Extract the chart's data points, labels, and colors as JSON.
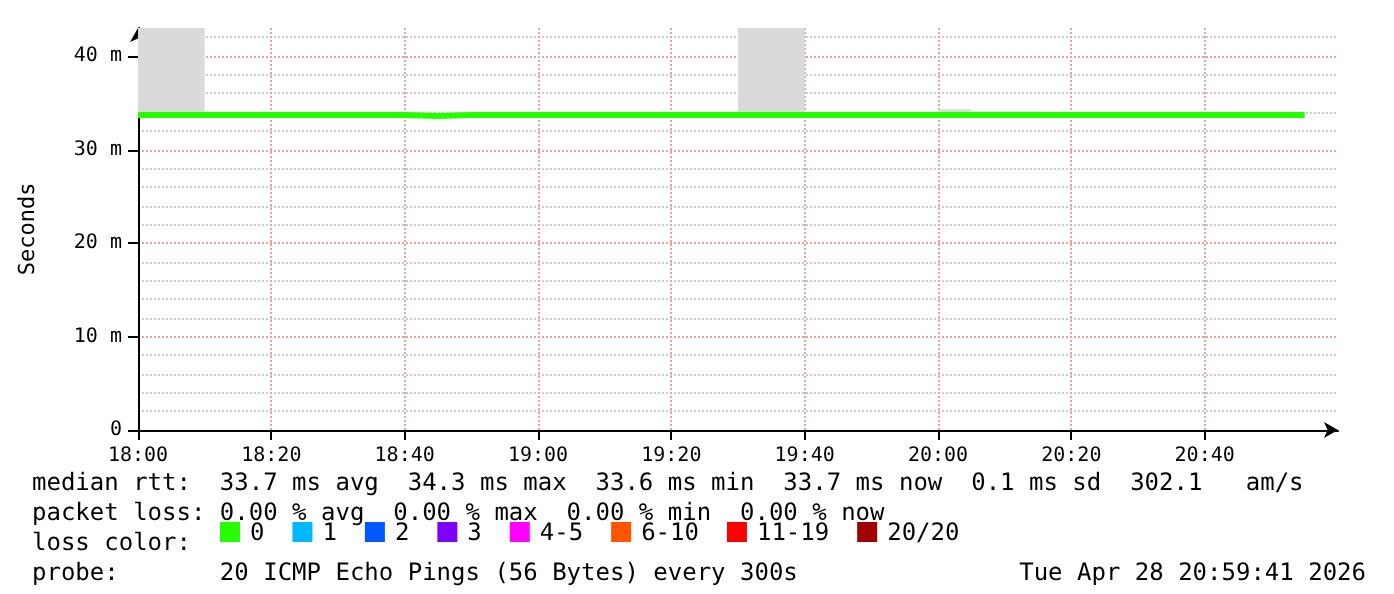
{
  "chart_data": {
    "type": "step",
    "ylabel": "Seconds",
    "x": [
      "2026-04-28T18:00",
      "2026-04-28T18:05",
      "2026-04-28T18:10",
      "2026-04-28T18:15",
      "2026-04-28T18:20",
      "2026-04-28T18:25",
      "2026-04-28T18:30",
      "2026-04-28T18:35",
      "2026-04-28T18:40",
      "2026-04-28T18:45",
      "2026-04-28T18:50",
      "2026-04-28T18:55",
      "2026-04-28T19:00",
      "2026-04-28T19:05",
      "2026-04-28T19:10",
      "2026-04-28T19:15",
      "2026-04-28T19:20",
      "2026-04-28T19:25",
      "2026-04-28T19:30",
      "2026-04-28T19:35",
      "2026-04-28T19:40",
      "2026-04-28T19:45",
      "2026-04-28T19:50",
      "2026-04-28T19:55",
      "2026-04-28T20:00",
      "2026-04-28T20:05",
      "2026-04-28T20:10",
      "2026-04-28T20:15",
      "2026-04-28T20:20",
      "2026-04-28T20:25",
      "2026-04-28T20:30",
      "2026-04-28T20:35",
      "2026-04-28T20:40",
      "2026-04-28T20:45",
      "2026-04-28T20:50",
      "2026-04-28T20:55"
    ],
    "series": [
      {
        "name": "0",
        "color": "#26ff00",
        "values": [
          33.7,
          33.7,
          33.7,
          33.7,
          33.7,
          33.7,
          33.7,
          33.7,
          33.6,
          33.7,
          33.7,
          33.7,
          33.7,
          33.7,
          33.7,
          33.7,
          33.7,
          33.7,
          33.7,
          33.7,
          33.7,
          33.7,
          33.7,
          33.7,
          33.7,
          33.7,
          33.7,
          33.7,
          33.7,
          33.7,
          33.7,
          33.7,
          33.7,
          33.7,
          33.7,
          33.7
        ],
        "lower": [
          33.7,
          33.7,
          33.7,
          null,
          null,
          null,
          null,
          null,
          null,
          null,
          null,
          null,
          null,
          null,
          null,
          null,
          null,
          null,
          33.7,
          33.7,
          33.7,
          null,
          null,
          null,
          33.7,
          33.7,
          33.7,
          33.7,
          null,
          null,
          null,
          null,
          null,
          null,
          null,
          null
        ],
        "upper": [
          43,
          43,
          43,
          null,
          null,
          null,
          null,
          null,
          null,
          null,
          null,
          null,
          null,
          null,
          null,
          null,
          null,
          null,
          43,
          43,
          43,
          null,
          null,
          null,
          34.3,
          34.1,
          34.1,
          34.1,
          null,
          null,
          null,
          null,
          null,
          null,
          null,
          null
        ]
      },
      {
        "name": "1",
        "color": "#00b8ff",
        "values": [
          null,
          null,
          null,
          null,
          null,
          null,
          null,
          null,
          null,
          null,
          null,
          null,
          null,
          null,
          null,
          null,
          null,
          null,
          null,
          null,
          null,
          null,
          null,
          null,
          null,
          null,
          null,
          null,
          null,
          null,
          null,
          null,
          null,
          null,
          null,
          null
        ]
      },
      {
        "name": "2",
        "color": "#0059ff",
        "values": [
          null,
          null,
          null,
          null,
          null,
          null,
          null,
          null,
          null,
          null,
          null,
          null,
          null,
          null,
          null,
          null,
          null,
          null,
          null,
          null,
          null,
          null,
          null,
          null,
          null,
          null,
          null,
          null,
          null,
          null,
          null,
          null,
          null,
          null,
          null,
          null
        ]
      },
      {
        "name": "3",
        "color": "#7e00ff",
        "values": [
          null,
          null,
          null,
          null,
          null,
          null,
          null,
          null,
          null,
          null,
          null,
          null,
          null,
          null,
          null,
          null,
          null,
          null,
          null,
          null,
          null,
          null,
          null,
          null,
          null,
          null,
          null,
          null,
          null,
          null,
          null,
          null,
          null,
          null,
          null,
          null
        ]
      },
      {
        "name": "4-5",
        "color": "#ff00ff",
        "values": [
          null,
          null,
          null,
          null,
          null,
          null,
          null,
          null,
          null,
          null,
          null,
          null,
          null,
          null,
          null,
          null,
          null,
          null,
          null,
          null,
          null,
          null,
          null,
          null,
          null,
          null,
          null,
          null,
          null,
          null,
          null,
          null,
          null,
          null,
          null,
          null
        ]
      },
      {
        "name": "6-10",
        "color": "#ff5500",
        "values": [
          null,
          null,
          null,
          null,
          null,
          null,
          null,
          null,
          null,
          null,
          null,
          null,
          null,
          null,
          null,
          null,
          null,
          null,
          null,
          null,
          null,
          null,
          null,
          null,
          null,
          null,
          null,
          null,
          null,
          null,
          null,
          null,
          null,
          null,
          null,
          null
        ]
      },
      {
        "name": "11-19",
        "color": "#ff0000",
        "values": [
          null,
          null,
          null,
          null,
          null,
          null,
          null,
          null,
          null,
          null,
          null,
          null,
          null,
          null,
          null,
          null,
          null,
          null,
          null,
          null,
          null,
          null,
          null,
          null,
          null,
          null,
          null,
          null,
          null,
          null,
          null,
          null,
          null,
          null,
          null,
          null
        ]
      },
      {
        "name": "20/20",
        "color": "#a10000",
        "values": [
          null,
          null,
          null,
          null,
          null,
          null,
          null,
          null,
          null,
          null,
          null,
          null,
          null,
          null,
          null,
          null,
          null,
          null,
          null,
          null,
          null,
          null,
          null,
          null,
          null,
          null,
          null,
          null,
          null,
          null,
          null,
          null,
          null,
          null,
          null,
          null
        ]
      }
    ],
    "xlim": [
      "2026-04-28T18:00",
      "2026-04-28T21:00"
    ],
    "xticks": [
      {
        "value": "2026-04-28T18:00",
        "label": "18:00"
      },
      {
        "value": "2026-04-28T18:20",
        "label": "18:20"
      },
      {
        "value": "2026-04-28T18:40",
        "label": "18:40"
      },
      {
        "value": "2026-04-28T19:00",
        "label": "19:00"
      },
      {
        "value": "2026-04-28T19:20",
        "label": "19:20"
      },
      {
        "value": "2026-04-28T19:40",
        "label": "19:40"
      },
      {
        "value": "2026-04-28T20:00",
        "label": "20:00"
      },
      {
        "value": "2026-04-28T20:20",
        "label": "20:20"
      },
      {
        "value": "2026-04-28T20:40",
        "label": "20:40"
      }
    ],
    "ylim": [
      0,
      43
    ],
    "yticks": [
      0,
      {
        "value": 10,
        "label": "10 m"
      },
      {
        "value": 20,
        "label": "20 m"
      },
      {
        "value": 30,
        "label": "30 m"
      },
      {
        "value": 40,
        "label": "40 m"
      }
    ],
    "grid": true,
    "legend": "bottom",
    "marker": "none",
    "line_style": "solid",
    "annotations": [
      "median rtt:  33.7 ms avg  34.3 ms max  33.6 ms min  33.7 ms now  0.1 ms sd  302.1   am/s",
      "packet loss: 0.00 % avg  0.00 % max  0.00 % min  0.00 % now",
      "loss color:",
      "probe:       20 ICMP Echo Pings (56 Bytes) every 300s",
      "Tue Apr 28 20:59:41 2026"
    ]
  }
}
